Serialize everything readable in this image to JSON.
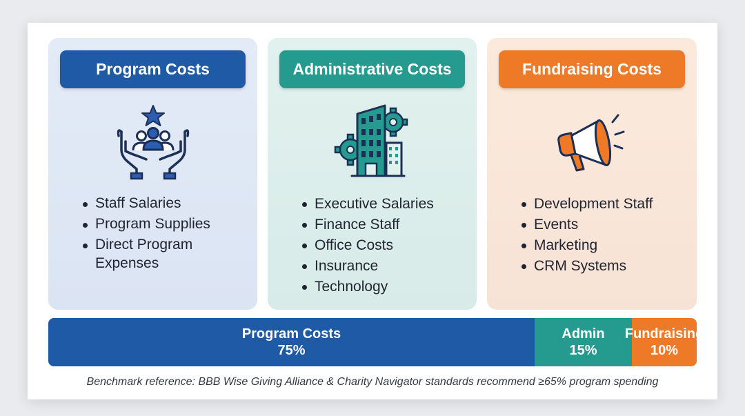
{
  "columns": [
    {
      "title": "Program Costs",
      "icon": "caring-hands-people-icon",
      "items": [
        "Staff Salaries",
        "Program Supplies",
        "Direct Program Expenses"
      ]
    },
    {
      "title": "Administrative Costs",
      "icon": "office-building-gears-icon",
      "items": [
        "Executive Salaries",
        "Finance Staff",
        "Office Costs",
        "Insurance",
        "Technology"
      ]
    },
    {
      "title": "Fundraising Costs",
      "icon": "megaphone-icon",
      "items": [
        "Development Staff",
        "Events",
        "Marketing",
        "CRM Systems"
      ]
    }
  ],
  "allocation": [
    {
      "label": "Program Costs",
      "value_text": "75%",
      "percent": 75
    },
    {
      "label": "Admin",
      "value_text": "15%",
      "percent": 15
    },
    {
      "label": "Fundraising",
      "value_text": "10%",
      "percent": 10
    }
  ],
  "colors": {
    "program": "#1f5aa6",
    "admin": "#259b8f",
    "fundraising": "#ee7a28"
  },
  "note": "Benchmark reference: BBB Wise Giving Alliance & Charity Navigator standards recommend ≥65% program spending"
}
